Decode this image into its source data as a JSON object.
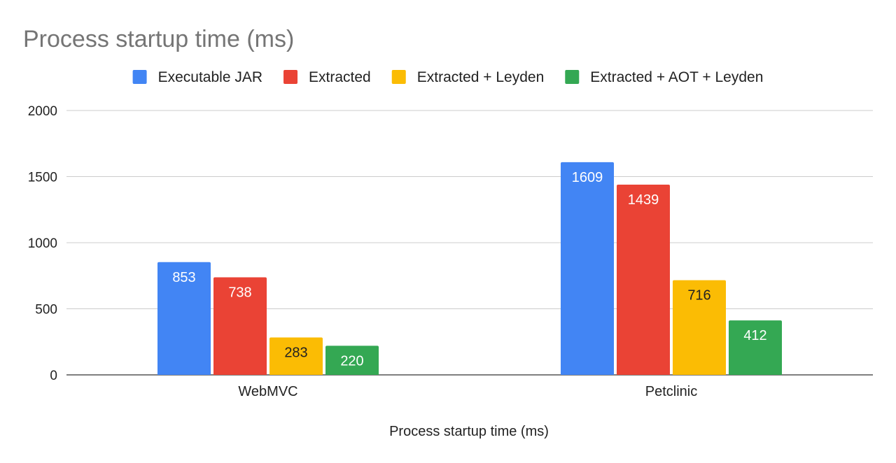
{
  "chart_data": {
    "type": "bar",
    "title": "Process startup time (ms)",
    "xlabel": "Process startup time (ms)",
    "ylabel": "",
    "categories": [
      "WebMVC",
      "Petclinic"
    ],
    "series": [
      {
        "name": "Executable JAR",
        "values": [
          853,
          1609
        ],
        "color": "#4285F4",
        "label_color": "#ffffff"
      },
      {
        "name": "Extracted",
        "values": [
          738,
          1439
        ],
        "color": "#EA4335",
        "label_color": "#ffffff"
      },
      {
        "name": "Extracted + Leyden",
        "values": [
          283,
          716
        ],
        "color": "#FBBC04",
        "label_color": "#222222"
      },
      {
        "name": "Extracted + AOT + Leyden",
        "values": [
          220,
          412
        ],
        "color": "#34A853",
        "label_color": "#ffffff"
      }
    ],
    "ylim": [
      0,
      2000
    ],
    "yticks": [
      0,
      500,
      1000,
      1500,
      2000
    ],
    "grid": true,
    "legend_position": "top"
  }
}
